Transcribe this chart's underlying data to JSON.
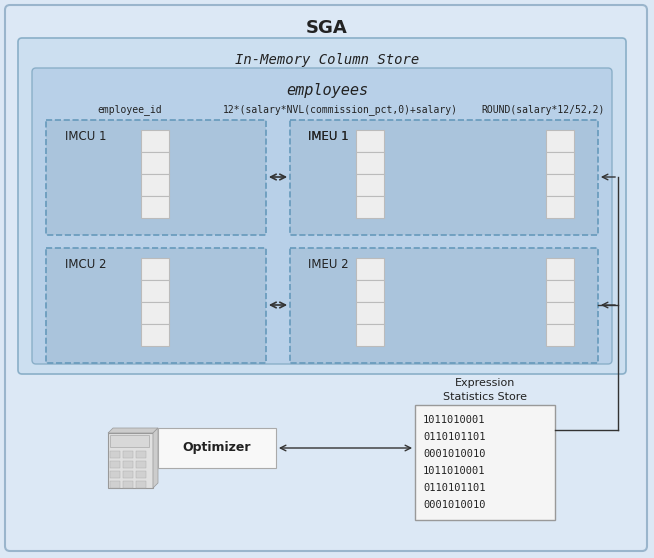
{
  "title": "SGA",
  "imcs_label": "In-Memory Column Store",
  "employees_label": "employees",
  "col_label1": "employee_id",
  "col_label2": "12*(salary*NVL(commission_pct,0)+salary)",
  "col_label3": "ROUND(salary*12/52,2)",
  "imcu1_label": "IMCU 1",
  "imcu2_label": "IMCU 2",
  "imeu1_label": "IMEU 1",
  "imeu2_label": "IMEU 2",
  "optimizer_label": "Optimizer",
  "expr_title_line1": "Expression",
  "expr_title_line2": "Statistics Store",
  "binary_lines": [
    "1011010001",
    "0110101101",
    "0001010010",
    "1011010001",
    "0110101101",
    "0001010010"
  ],
  "sga_bg": "#dce8f5",
  "sga_border": "#9ab5cc",
  "imcs_bg": "#ccdff0",
  "imcs_border": "#8aafc8",
  "emp_bg": "#b8d0e8",
  "emp_border": "#8aafc8",
  "dashed_box_bg": "#aac4dc",
  "dashed_box_border": "#6699bb",
  "col_block_face": "#eeeeee",
  "col_block_edge": "#bbbbbb",
  "arrow_color": "#333333",
  "text_color": "#222222",
  "expr_box_bg": "#f5f5f5",
  "expr_box_border": "#999999",
  "opt_box_bg": "#f8f8f8",
  "opt_box_border": "#aaaaaa",
  "connector_color": "#333333"
}
